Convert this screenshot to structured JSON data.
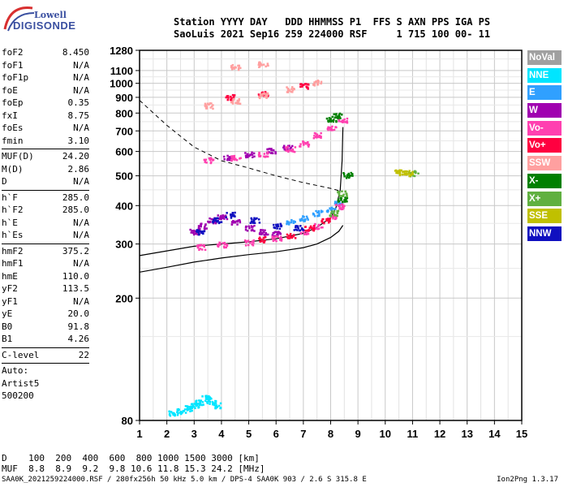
{
  "logo": {
    "line1": "Lowell",
    "line2": "DIGISONDE"
  },
  "header": {
    "line1": "Station YYYY DAY   DDD HHMMSS P1  FFS S AXN PPS IGA PS",
    "line2": "SaoLuis 2021 Sep16 259 224000 RSF     1 715 100 00- 11"
  },
  "params": [
    [
      {
        "label": "foF2",
        "value": "8.450"
      },
      {
        "label": "foF1",
        "value": "N/A"
      },
      {
        "label": "foF1p",
        "value": "N/A"
      },
      {
        "label": "foE",
        "value": "N/A"
      },
      {
        "label": "foEp",
        "value": "0.35"
      },
      {
        "label": "fxI",
        "value": "8.75"
      },
      {
        "label": "foEs",
        "value": "N/A"
      },
      {
        "label": "fmin",
        "value": "3.10"
      }
    ],
    [
      {
        "label": "MUF(D)",
        "value": "24.20"
      },
      {
        "label": "M(D)",
        "value": "2.86"
      },
      {
        "label": "D",
        "value": "N/A"
      }
    ],
    [
      {
        "label": "h`F",
        "value": "285.0"
      },
      {
        "label": "h`F2",
        "value": "285.0"
      },
      {
        "label": "h`E",
        "value": "N/A"
      },
      {
        "label": "h`Es",
        "value": "N/A"
      }
    ],
    [
      {
        "label": "hmF2",
        "value": "375.2"
      },
      {
        "label": "hmF1",
        "value": "N/A"
      },
      {
        "label": "hmE",
        "value": "110.0"
      },
      {
        "label": "yF2",
        "value": "113.5"
      },
      {
        "label": "yF1",
        "value": "N/A"
      },
      {
        "label": "yE",
        "value": "20.0"
      },
      {
        "label": "B0",
        "value": "91.8"
      },
      {
        "label": "B1",
        "value": "4.26"
      }
    ],
    [
      {
        "label": "C-level",
        "value": "22"
      }
    ],
    [
      {
        "label": "Auto:",
        "value": ""
      },
      {
        "label": "Artist5",
        "value": ""
      },
      {
        "label": "500200",
        "value": ""
      }
    ]
  ],
  "legend": [
    {
      "label": "NoVal",
      "color": "#a0a0a0"
    },
    {
      "label": "NNE",
      "color": "#00e5ff"
    },
    {
      "label": "E",
      "color": "#30a0ff"
    },
    {
      "label": "W",
      "color": "#a000b0"
    },
    {
      "label": "Vo-",
      "color": "#ff40b0"
    },
    {
      "label": "Vo+",
      "color": "#ff0040"
    },
    {
      "label": "SSW",
      "color": "#ffa0a0"
    },
    {
      "label": "X-",
      "color": "#008000"
    },
    {
      "label": "X+",
      "color": "#60b040"
    },
    {
      "label": "SSE",
      "color": "#c0c000"
    },
    {
      "label": "NNW",
      "color": "#1010c0"
    }
  ],
  "footer": {
    "row1": "D    100  200  400  600  800 1000 1500 3000 [km]",
    "row2": "MUF  8.8  8.9  9.2  9.8 10.6 11.8 15.3 24.2 [MHz]",
    "source": "SAA0K_2021259224000.RSF / 280fx256h 50 kHz 5.0 km / DPS-4 SAA0K 903 / 2.6 S 315.8 E",
    "version": "Ion2Png 1.3.17"
  },
  "chart_data": {
    "type": "scatter",
    "xlim": [
      1,
      15
    ],
    "ylim": [
      80,
      1280
    ],
    "xticks": [
      "1",
      "2",
      "3",
      "4",
      "5",
      "6",
      "7",
      "8",
      "9",
      "10",
      "11",
      "12",
      "13",
      "14",
      "15"
    ],
    "yticks": [
      "80",
      "200",
      "300",
      "400",
      "500",
      "600",
      "700",
      "800",
      "900",
      "1000",
      "1100",
      "1280"
    ],
    "y_scale": "log",
    "grid": true,
    "series": [
      {
        "name": "NNE",
        "color": "#00e5ff",
        "points": [
          [
            2.2,
            85
          ],
          [
            2.5,
            86
          ],
          [
            2.8,
            88
          ],
          [
            3.0,
            90
          ],
          [
            3.2,
            92
          ],
          [
            3.4,
            95
          ],
          [
            3.6,
            93
          ],
          [
            3.8,
            90
          ]
        ]
      },
      {
        "name": "E",
        "color": "#30a0ff",
        "points": [
          [
            6.5,
            355
          ],
          [
            7.0,
            365
          ],
          [
            7.5,
            380
          ],
          [
            8.0,
            390
          ],
          [
            8.3,
            410
          ]
        ]
      },
      {
        "name": "W",
        "color": "#a000b0",
        "points": [
          [
            3.0,
            330
          ],
          [
            3.3,
            345
          ],
          [
            3.6,
            360
          ],
          [
            4.0,
            370
          ],
          [
            4.5,
            355
          ],
          [
            5.0,
            340
          ],
          [
            5.5,
            330
          ],
          [
            6.0,
            325
          ],
          [
            4.2,
            575
          ],
          [
            5.0,
            590
          ],
          [
            5.8,
            605
          ],
          [
            6.4,
            620
          ]
        ]
      },
      {
        "name": "Vo-",
        "color": "#ff40b0",
        "points": [
          [
            3.2,
            295
          ],
          [
            4.0,
            300
          ],
          [
            5.0,
            305
          ],
          [
            6.0,
            315
          ],
          [
            7.0,
            330
          ],
          [
            7.5,
            345
          ],
          [
            8.0,
            370
          ],
          [
            8.3,
            400
          ],
          [
            3.5,
            565
          ],
          [
            4.5,
            575
          ],
          [
            5.5,
            590
          ],
          [
            6.5,
            615
          ],
          [
            7.0,
            640
          ],
          [
            7.5,
            680
          ],
          [
            8.0,
            720
          ],
          [
            8.4,
            760
          ]
        ]
      },
      {
        "name": "Vo+",
        "color": "#ff0040",
        "points": [
          [
            5.5,
            312
          ],
          [
            6.5,
            322
          ],
          [
            7.2,
            340
          ],
          [
            7.8,
            360
          ],
          [
            4.3,
            905
          ],
          [
            5.5,
            930
          ],
          [
            7.0,
            985
          ]
        ]
      },
      {
        "name": "SSW",
        "color": "#ffa0a0",
        "points": [
          [
            3.5,
            850
          ],
          [
            4.5,
            880
          ],
          [
            5.5,
            920
          ],
          [
            6.5,
            960
          ],
          [
            7.5,
            1010
          ],
          [
            4.5,
            1135
          ],
          [
            5.5,
            1160
          ]
        ]
      },
      {
        "name": "X-",
        "color": "#008000",
        "points": [
          [
            8.0,
            770
          ],
          [
            8.2,
            790
          ],
          [
            8.4,
            420
          ],
          [
            8.6,
            505
          ]
        ]
      },
      {
        "name": "X+",
        "color": "#60b040",
        "points": [
          [
            8.1,
            380
          ],
          [
            8.4,
            440
          ],
          [
            11.0,
            512
          ]
        ]
      },
      {
        "name": "SSE",
        "color": "#c0c000",
        "points": [
          [
            10.5,
            515
          ],
          [
            10.8,
            512
          ]
        ]
      },
      {
        "name": "NNW",
        "color": "#1010c0",
        "points": [
          [
            3.2,
            330
          ],
          [
            3.8,
            360
          ],
          [
            4.3,
            375
          ],
          [
            5.2,
            360
          ],
          [
            6.0,
            345
          ],
          [
            6.8,
            340
          ]
        ]
      }
    ],
    "curves": {
      "ohf_profile": [
        [
          1,
          243
        ],
        [
          2,
          252
        ],
        [
          3,
          262
        ],
        [
          4,
          270
        ],
        [
          5,
          277
        ],
        [
          6,
          283
        ],
        [
          7,
          292
        ],
        [
          7.5,
          300
        ],
        [
          8.0,
          315
        ],
        [
          8.3,
          330
        ],
        [
          8.45,
          345
        ]
      ],
      "virtual_height_o": [
        [
          1,
          275
        ],
        [
          2,
          285
        ],
        [
          3,
          295
        ],
        [
          4,
          300
        ],
        [
          5,
          305
        ],
        [
          6,
          312
        ],
        [
          7,
          325
        ],
        [
          7.5,
          340
        ],
        [
          8.0,
          365
        ],
        [
          8.2,
          395
        ],
        [
          8.35,
          450
        ],
        [
          8.42,
          560
        ],
        [
          8.45,
          720
        ]
      ],
      "dashed_muf": [
        [
          1,
          880
        ],
        [
          2,
          730
        ],
        [
          3,
          620
        ],
        [
          4,
          560
        ],
        [
          5,
          530
        ],
        [
          6,
          500
        ],
        [
          7,
          475
        ],
        [
          8,
          455
        ],
        [
          8.4,
          445
        ]
      ],
      "dashed_secondary": [
        [
          3.0,
          560
        ],
        [
          4.0,
          560
        ],
        [
          5.0,
          530
        ],
        [
          6.0,
          500
        ],
        [
          7.0,
          460
        ],
        [
          8.0,
          420
        ]
      ]
    }
  }
}
